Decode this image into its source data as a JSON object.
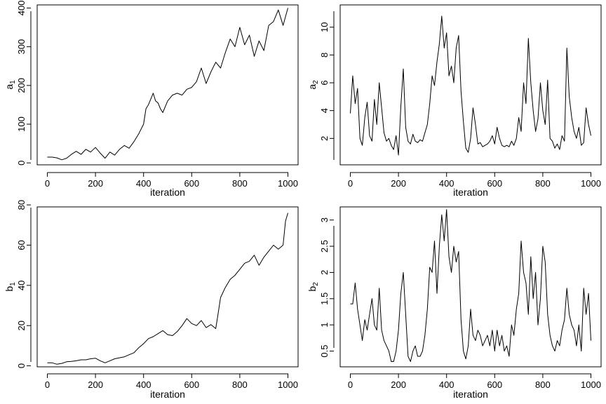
{
  "chart_data": [
    {
      "type": "line",
      "xlabel": "iteration",
      "ylabel": "a",
      "ylabel_subscript": "1",
      "xlim": [
        0,
        1000
      ],
      "ylim": [
        -5,
        408
      ],
      "x_ticks": [
        0,
        200,
        400,
        600,
        800,
        1000
      ],
      "y_ticks": [
        0,
        100,
        200,
        300,
        400
      ],
      "grid": false,
      "series": [
        {
          "x": [
            0,
            20,
            40,
            60,
            80,
            100,
            120,
            140,
            160,
            180,
            200,
            220,
            240,
            260,
            280,
            300,
            320,
            340,
            360,
            380,
            400,
            410,
            420,
            430,
            440,
            450,
            460,
            470,
            480,
            500,
            520,
            540,
            560,
            580,
            600,
            620,
            640,
            660,
            680,
            700,
            720,
            740,
            760,
            780,
            800,
            820,
            840,
            860,
            880,
            900,
            920,
            940,
            960,
            980,
            1000
          ],
          "y": [
            15,
            15,
            13,
            8,
            12,
            22,
            30,
            22,
            35,
            28,
            40,
            25,
            12,
            28,
            20,
            35,
            45,
            38,
            55,
            75,
            100,
            140,
            150,
            165,
            180,
            160,
            155,
            140,
            130,
            160,
            175,
            180,
            175,
            190,
            195,
            210,
            245,
            205,
            235,
            260,
            245,
            285,
            320,
            300,
            350,
            305,
            330,
            275,
            315,
            290,
            355,
            365,
            395,
            355,
            400
          ]
        }
      ]
    },
    {
      "type": "line",
      "xlabel": "iteration",
      "ylabel": "a",
      "ylabel_subscript": "2",
      "xlim": [
        0,
        1000
      ],
      "ylim": [
        0.1,
        11.6
      ],
      "x_ticks": [
        0,
        200,
        400,
        600,
        800,
        1000
      ],
      "y_ticks": [
        2,
        4,
        6,
        8,
        10
      ],
      "grid": false,
      "series": [
        {
          "x": [
            0,
            10,
            20,
            30,
            40,
            50,
            60,
            70,
            80,
            90,
            100,
            110,
            120,
            130,
            140,
            150,
            160,
            170,
            180,
            190,
            200,
            210,
            220,
            230,
            240,
            250,
            260,
            270,
            280,
            290,
            300,
            310,
            320,
            330,
            340,
            350,
            360,
            370,
            380,
            390,
            400,
            410,
            420,
            430,
            440,
            450,
            460,
            470,
            480,
            490,
            500,
            510,
            520,
            530,
            540,
            550,
            560,
            570,
            580,
            590,
            600,
            610,
            620,
            630,
            640,
            650,
            660,
            670,
            680,
            690,
            700,
            710,
            720,
            730,
            740,
            750,
            760,
            770,
            780,
            790,
            800,
            810,
            820,
            830,
            840,
            850,
            860,
            870,
            880,
            890,
            900,
            910,
            920,
            930,
            940,
            950,
            960,
            970,
            980,
            990,
            1000
          ],
          "y": [
            3.8,
            6.5,
            4.5,
            5.6,
            2.0,
            1.5,
            3.5,
            4.6,
            2.2,
            1.8,
            4.8,
            3.0,
            6.0,
            4.2,
            2.4,
            1.8,
            2.0,
            1.5,
            1.2,
            2.2,
            0.8,
            4.3,
            7.0,
            2.8,
            1.8,
            1.6,
            2.3,
            1.8,
            1.7,
            1.9,
            1.8,
            2.4,
            3.0,
            4.5,
            6.5,
            5.8,
            7.5,
            8.8,
            10.8,
            8.5,
            9.6,
            6.5,
            7.2,
            6.0,
            8.5,
            9.4,
            5.4,
            3.2,
            1.3,
            1.0,
            2.0,
            4.2,
            3.0,
            1.6,
            1.7,
            1.4,
            1.5,
            1.6,
            1.8,
            2.2,
            1.6,
            2.8,
            2.0,
            1.5,
            1.4,
            1.5,
            1.4,
            1.8,
            1.5,
            2.0,
            3.5,
            2.5,
            6.0,
            4.5,
            9.2,
            6.0,
            4.0,
            2.5,
            3.4,
            6.0,
            4.0,
            3.0,
            6.2,
            2.0,
            1.8,
            1.3,
            1.6,
            1.2,
            2.2,
            1.8,
            8.5,
            5.0,
            3.5,
            2.5,
            2.0,
            2.8,
            1.5,
            1.7,
            4.2,
            3.0,
            2.2
          ]
        }
      ]
    },
    {
      "type": "line",
      "xlabel": "iteration",
      "ylabel": "b",
      "ylabel_subscript": "1",
      "xlim": [
        0,
        1000
      ],
      "ylim": [
        -0.5,
        79
      ],
      "x_ticks": [
        0,
        200,
        400,
        600,
        800,
        1000
      ],
      "y_ticks": [
        0,
        20,
        40,
        60,
        80
      ],
      "grid": false,
      "series": [
        {
          "x": [
            0,
            20,
            40,
            60,
            80,
            100,
            120,
            140,
            160,
            180,
            200,
            220,
            240,
            260,
            280,
            300,
            320,
            340,
            360,
            380,
            400,
            420,
            440,
            460,
            480,
            500,
            520,
            540,
            560,
            580,
            600,
            620,
            640,
            660,
            680,
            700,
            710,
            720,
            740,
            760,
            780,
            800,
            820,
            840,
            860,
            880,
            900,
            920,
            940,
            960,
            980,
            990,
            1000
          ],
          "y": [
            1.5,
            1.5,
            0.8,
            1.2,
            2.0,
            2.2,
            2.5,
            3.0,
            3.0,
            3.5,
            3.8,
            2.5,
            1.5,
            2.5,
            3.5,
            4.0,
            4.5,
            5.5,
            6.5,
            9.0,
            11.0,
            13.5,
            14.5,
            16.0,
            17.5,
            15.5,
            15.0,
            17.0,
            20.0,
            23.5,
            21.0,
            20.0,
            22.5,
            19.0,
            20.5,
            18.5,
            26.0,
            34.0,
            39.0,
            43.0,
            45.0,
            48.0,
            51.0,
            52.0,
            55.0,
            50.0,
            54.0,
            57.0,
            60.0,
            58.0,
            60.0,
            72.0,
            76.0
          ]
        }
      ]
    },
    {
      "type": "line",
      "xlabel": "iteration",
      "ylabel": "b",
      "ylabel_subscript": "2",
      "xlim": [
        0,
        1000
      ],
      "ylim": [
        0.2,
        3.25
      ],
      "x_ticks": [
        0,
        200,
        400,
        600,
        800,
        1000
      ],
      "y_ticks": [
        0.5,
        1.0,
        1.5,
        2.0,
        2.5,
        3.0
      ],
      "grid": false,
      "series": [
        {
          "x": [
            0,
            10,
            20,
            30,
            40,
            50,
            60,
            70,
            80,
            90,
            100,
            110,
            120,
            130,
            140,
            150,
            160,
            170,
            180,
            190,
            200,
            210,
            220,
            230,
            240,
            250,
            260,
            270,
            280,
            290,
            300,
            310,
            320,
            330,
            340,
            350,
            360,
            370,
            380,
            390,
            400,
            410,
            420,
            430,
            440,
            450,
            460,
            470,
            480,
            490,
            500,
            510,
            520,
            530,
            540,
            550,
            560,
            570,
            580,
            590,
            600,
            610,
            620,
            630,
            640,
            650,
            660,
            670,
            680,
            690,
            700,
            710,
            720,
            730,
            740,
            750,
            760,
            770,
            780,
            790,
            800,
            810,
            820,
            830,
            840,
            850,
            860,
            870,
            880,
            890,
            900,
            910,
            920,
            930,
            940,
            950,
            960,
            970,
            980,
            990,
            1000
          ],
          "y": [
            1.4,
            1.4,
            1.8,
            1.3,
            1.0,
            0.7,
            1.1,
            0.9,
            1.2,
            1.5,
            1.0,
            0.9,
            1.7,
            0.9,
            0.7,
            0.6,
            0.5,
            0.3,
            0.3,
            0.5,
            0.9,
            1.6,
            2.0,
            1.2,
            0.4,
            0.3,
            0.5,
            0.6,
            0.4,
            0.4,
            0.5,
            0.8,
            1.3,
            2.1,
            2.0,
            2.6,
            1.6,
            2.5,
            3.1,
            2.6,
            3.2,
            2.3,
            2.0,
            2.5,
            2.2,
            2.4,
            1.1,
            0.5,
            0.35,
            0.6,
            1.3,
            0.8,
            0.7,
            0.9,
            0.8,
            0.6,
            0.7,
            0.8,
            0.6,
            0.9,
            0.5,
            0.9,
            0.6,
            0.8,
            0.5,
            0.6,
            0.4,
            1.0,
            0.8,
            1.3,
            1.6,
            2.6,
            2.0,
            1.8,
            1.2,
            2.3,
            1.5,
            2.0,
            1.0,
            1.5,
            2.5,
            2.2,
            1.2,
            0.8,
            0.6,
            0.5,
            0.7,
            0.6,
            0.9,
            1.1,
            1.7,
            1.2,
            1.0,
            0.9,
            0.6,
            1.0,
            0.5,
            1.7,
            1.2,
            1.6,
            0.7
          ]
        }
      ]
    }
  ]
}
